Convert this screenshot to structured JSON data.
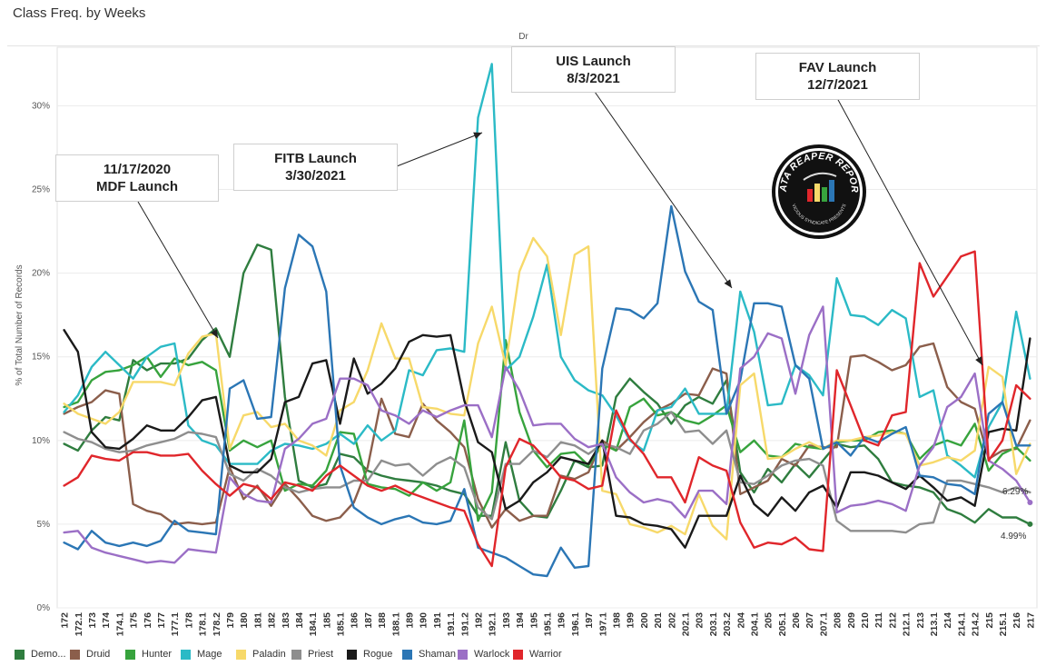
{
  "chart_data": {
    "type": "line",
    "title": "Class Freq. by Weeks",
    "pane_label": "Dr",
    "ylabel": "% of Total Number of Records",
    "ylim": [
      0,
      33.5
    ],
    "yticks": [
      "0%",
      "5%",
      "10%",
      "15%",
      "20%",
      "25%",
      "30%"
    ],
    "x": [
      "172",
      "172.1",
      "173",
      "174",
      "174.1",
      "175",
      "176",
      "177",
      "177.1",
      "178",
      "178.1",
      "178.2",
      "179",
      "180",
      "181",
      "182",
      "183",
      "184",
      "184.1",
      "185",
      "185.1",
      "186",
      "187",
      "188",
      "188.1",
      "189",
      "190",
      "191",
      "191.1",
      "191.2",
      "192",
      "192.1",
      "193",
      "194",
      "195",
      "195.1",
      "196",
      "196.1",
      "197",
      "197.1",
      "198",
      "199",
      "200",
      "201",
      "202",
      "202.1",
      "203",
      "203.1",
      "203.2",
      "204",
      "204.1",
      "205",
      "205.1",
      "206",
      "207",
      "207.1",
      "208",
      "209",
      "210",
      "211",
      "212",
      "212.1",
      "213",
      "213.1",
      "214",
      "214.1",
      "214.2",
      "215",
      "215.1",
      "216",
      "217"
    ],
    "series": [
      {
        "name": "Demo...",
        "color": "#2f7d3f",
        "values": [
          9.8,
          9.4,
          10.6,
          11.4,
          11.2,
          14.8,
          14.2,
          14.6,
          14.6,
          14.9,
          16.0,
          16.7,
          15.0,
          20.0,
          21.7,
          21.4,
          12.6,
          7.6,
          7.2,
          7.4,
          9.2,
          9.0,
          8.2,
          7.9,
          7.7,
          7.6,
          7.5,
          7.3,
          7.0,
          6.8,
          5.5,
          5.5,
          9.9,
          6.4,
          5.5,
          5.4,
          7.0,
          8.8,
          8.4,
          8.5,
          12.6,
          13.7,
          12.9,
          12.2,
          11.0,
          12.1,
          12.6,
          12.2,
          13.6,
          8.1,
          6.9,
          8.3,
          7.5,
          8.6,
          7.8,
          8.8,
          9.8,
          9.6,
          9.7,
          8.9,
          7.5,
          7.3,
          7.2,
          6.9,
          5.9,
          5.6,
          5.1,
          5.9,
          5.4,
          5.4,
          5.0
        ]
      },
      {
        "name": "Druid",
        "color": "#8b5e4b",
        "values": [
          11.6,
          12.0,
          12.3,
          13.0,
          12.8,
          6.2,
          5.8,
          5.6,
          5.0,
          5.1,
          5.0,
          5.1,
          8.4,
          6.5,
          7.3,
          6.1,
          7.4,
          6.5,
          5.5,
          5.2,
          5.4,
          6.3,
          8.4,
          12.5,
          10.4,
          10.2,
          12.2,
          11.2,
          10.5,
          9.6,
          6.5,
          4.8,
          5.9,
          5.2,
          5.5,
          5.5,
          7.9,
          7.7,
          8.1,
          10.0,
          9.4,
          10.2,
          11.1,
          11.8,
          12.2,
          12.8,
          12.7,
          14.3,
          14.0,
          6.8,
          7.2,
          7.6,
          8.9,
          8.5,
          9.7,
          9.6,
          9.6,
          15.0,
          15.1,
          14.7,
          14.2,
          14.5,
          15.6,
          15.8,
          13.2,
          12.3,
          11.9,
          8.9,
          9.4,
          9.5,
          11.2
        ]
      },
      {
        "name": "Hunter",
        "color": "#37a33d",
        "values": [
          12.0,
          12.3,
          13.6,
          14.1,
          14.2,
          14.5,
          15.0,
          13.8,
          14.9,
          14.5,
          14.7,
          14.2,
          9.4,
          10.0,
          9.6,
          10.0,
          7.0,
          7.4,
          7.3,
          8.2,
          10.5,
          10.4,
          7.4,
          7.2,
          7.1,
          6.7,
          7.5,
          7.0,
          7.5,
          11.2,
          5.2,
          6.9,
          16.0,
          11.7,
          9.4,
          8.4,
          9.2,
          9.3,
          8.5,
          9.8,
          9.4,
          12.0,
          12.5,
          11.5,
          11.7,
          11.2,
          11.0,
          11.5,
          12.1,
          9.3,
          10.0,
          9.1,
          9.0,
          9.8,
          9.6,
          9.5,
          9.9,
          10.0,
          10.0,
          10.5,
          10.6,
          10.4,
          8.9,
          9.7,
          10.0,
          9.7,
          11.0,
          8.2,
          9.2,
          9.6,
          8.8
        ]
      },
      {
        "name": "Mage",
        "color": "#2bbac6",
        "values": [
          11.7,
          12.7,
          14.4,
          15.3,
          14.5,
          13.7,
          15.0,
          15.6,
          15.8,
          10.9,
          10.0,
          9.7,
          8.6,
          8.6,
          8.6,
          9.4,
          9.8,
          9.7,
          9.5,
          9.8,
          10.4,
          9.8,
          10.9,
          10.0,
          10.6,
          14.2,
          13.9,
          15.4,
          15.5,
          15.3,
          29.3,
          32.5,
          14.2,
          15.0,
          17.4,
          20.5,
          15.0,
          13.6,
          13.0,
          12.7,
          11.5,
          10.0,
          9.4,
          11.8,
          12.0,
          13.1,
          11.6,
          11.6,
          11.6,
          18.9,
          16.5,
          12.1,
          12.2,
          14.5,
          13.9,
          12.7,
          19.7,
          17.5,
          17.4,
          16.9,
          17.8,
          17.3,
          12.6,
          13.0,
          9.1,
          8.5,
          7.8,
          10.8,
          12.3,
          17.7,
          13.7
        ]
      },
      {
        "name": "Paladin",
        "color": "#f7d96a",
        "values": [
          12.2,
          11.6,
          11.3,
          11.0,
          11.7,
          13.5,
          13.5,
          13.5,
          13.3,
          15.2,
          16.2,
          16.4,
          9.5,
          11.5,
          11.7,
          10.8,
          11.0,
          10.0,
          9.7,
          9.1,
          11.8,
          12.3,
          14.2,
          17.0,
          14.9,
          14.9,
          12.0,
          11.9,
          11.6,
          11.5,
          15.8,
          18.0,
          14.5,
          20.1,
          22.1,
          21.0,
          16.3,
          21.1,
          21.6,
          7.0,
          6.8,
          5.0,
          4.8,
          4.5,
          4.9,
          4.4,
          6.8,
          4.9,
          4.1,
          13.3,
          14.0,
          8.9,
          9.0,
          9.5,
          9.9,
          9.5,
          10.0,
          10.0,
          10.2,
          10.3,
          10.5,
          10.4,
          8.5,
          8.7,
          9.0,
          8.8,
          9.4,
          14.4,
          13.8,
          8.0,
          9.8
        ]
      },
      {
        "name": "Priest",
        "color": "#8e8e8e",
        "values": [
          10.5,
          10.1,
          9.9,
          9.5,
          9.3,
          9.4,
          9.7,
          9.9,
          10.1,
          10.5,
          10.4,
          10.2,
          8.0,
          7.6,
          8.3,
          7.9,
          7.2,
          6.9,
          7.1,
          7.2,
          7.2,
          7.6,
          7.6,
          8.8,
          8.5,
          8.6,
          7.9,
          8.6,
          9.0,
          8.4,
          6.0,
          5.3,
          8.6,
          8.6,
          9.4,
          9.0,
          9.9,
          9.7,
          9.2,
          9.8,
          9.6,
          9.2,
          10.6,
          11.0,
          11.7,
          10.5,
          10.6,
          9.8,
          10.6,
          7.5,
          7.4,
          7.9,
          8.5,
          8.8,
          8.9,
          8.5,
          5.2,
          4.6,
          4.6,
          4.6,
          4.6,
          4.5,
          5.0,
          5.1,
          7.6,
          7.6,
          7.4,
          7.2,
          6.9,
          7.2,
          6.9
        ]
      },
      {
        "name": "Rogue",
        "color": "#1a1a1a",
        "values": [
          16.6,
          15.3,
          10.5,
          9.6,
          9.5,
          10.1,
          10.9,
          10.6,
          10.6,
          11.4,
          12.4,
          12.6,
          8.5,
          8.1,
          8.1,
          8.9,
          12.3,
          12.6,
          14.6,
          14.8,
          11.0,
          14.9,
          12.8,
          13.4,
          14.3,
          15.9,
          16.3,
          16.2,
          16.3,
          12.4,
          9.9,
          9.3,
          5.9,
          6.4,
          7.5,
          8.1,
          9.0,
          8.8,
          8.6,
          10.0,
          5.5,
          5.4,
          5.0,
          4.9,
          4.7,
          3.6,
          5.5,
          5.5,
          5.5,
          7.9,
          6.2,
          5.5,
          6.6,
          5.8,
          6.9,
          7.3,
          6.0,
          8.1,
          8.1,
          7.9,
          7.5,
          7.1,
          7.9,
          7.2,
          6.4,
          6.6,
          6.1,
          10.5,
          10.7,
          10.6,
          16.1
        ]
      },
      {
        "name": "Shaman",
        "color": "#2b76b5",
        "values": [
          3.9,
          3.5,
          4.6,
          3.9,
          3.7,
          3.9,
          3.7,
          4.0,
          5.2,
          4.6,
          4.5,
          4.4,
          13.1,
          13.6,
          11.3,
          11.4,
          19.1,
          22.3,
          21.6,
          18.9,
          8.5,
          6.0,
          5.4,
          5.0,
          5.3,
          5.5,
          5.1,
          5.0,
          5.2,
          7.1,
          3.6,
          3.3,
          3.0,
          2.5,
          2.0,
          1.9,
          3.6,
          2.4,
          2.5,
          14.3,
          17.9,
          17.8,
          17.3,
          18.2,
          24.0,
          20.1,
          18.3,
          17.8,
          11.6,
          13.6,
          18.2,
          18.2,
          18.0,
          14.5,
          13.7,
          9.5,
          9.9,
          9.1,
          10.2,
          9.9,
          10.4,
          10.8,
          7.9,
          7.8,
          7.4,
          7.3,
          6.8,
          11.6,
          12.3,
          9.7,
          9.7
        ]
      },
      {
        "name": "Warlock",
        "color": "#9b6fc6",
        "values": [
          4.5,
          4.6,
          3.6,
          3.3,
          3.1,
          2.9,
          2.7,
          2.8,
          2.7,
          3.5,
          3.4,
          3.3,
          7.8,
          6.8,
          6.4,
          6.3,
          9.5,
          10.1,
          11.0,
          11.3,
          13.7,
          13.7,
          13.3,
          11.8,
          11.5,
          11.0,
          11.8,
          11.4,
          11.8,
          12.1,
          12.1,
          10.2,
          14.4,
          13.0,
          10.9,
          11.0,
          11.0,
          10.1,
          9.6,
          9.8,
          7.8,
          6.9,
          6.3,
          6.5,
          6.3,
          5.4,
          7.0,
          7.0,
          6.2,
          14.3,
          15.0,
          16.4,
          16.1,
          12.8,
          16.3,
          18.0,
          5.7,
          6.1,
          6.2,
          6.4,
          6.2,
          5.8,
          8.5,
          9.6,
          12.0,
          12.6,
          14.0,
          8.8,
          8.3,
          7.6,
          6.3
        ]
      },
      {
        "name": "Warrior",
        "color": "#e0262b",
        "values": [
          7.3,
          7.8,
          9.1,
          8.9,
          8.8,
          9.3,
          9.3,
          9.1,
          9.1,
          9.2,
          8.2,
          7.4,
          6.7,
          7.4,
          7.2,
          6.5,
          7.5,
          7.3,
          7.0,
          7.9,
          8.5,
          7.9,
          7.3,
          7.0,
          7.3,
          6.9,
          6.6,
          6.3,
          6.0,
          5.8,
          3.8,
          2.5,
          8.4,
          10.1,
          9.7,
          8.8,
          7.8,
          7.6,
          7.1,
          7.3,
          11.8,
          10.1,
          9.2,
          7.8,
          7.8,
          6.3,
          9.0,
          8.5,
          8.2,
          5.1,
          3.6,
          3.9,
          3.8,
          4.2,
          3.5,
          3.4,
          14.2,
          12.1,
          10.0,
          9.7,
          11.5,
          11.7,
          20.6,
          18.6,
          19.8,
          21.0,
          21.3,
          8.8,
          10.0,
          13.3,
          12.5
        ]
      }
    ],
    "end_labels": {
      "warlock": "6.29%",
      "demo": "4.99%"
    },
    "annotations": [
      {
        "line1": "11/17/2020",
        "line2": "MDF Launch"
      },
      {
        "line1": "FITB Launch",
        "line2": "3/30/2021"
      },
      {
        "line1": "UIS Launch",
        "line2": "8/3/2021"
      },
      {
        "line1": "FAV Launch",
        "line2": "12/7/2021"
      }
    ],
    "grid": true,
    "legend_position": "bottom"
  },
  "logo": {
    "main_text": "DATA REAPER REPORT",
    "sub_text": "VICIOUS SYNDICATE PRESENTS"
  }
}
